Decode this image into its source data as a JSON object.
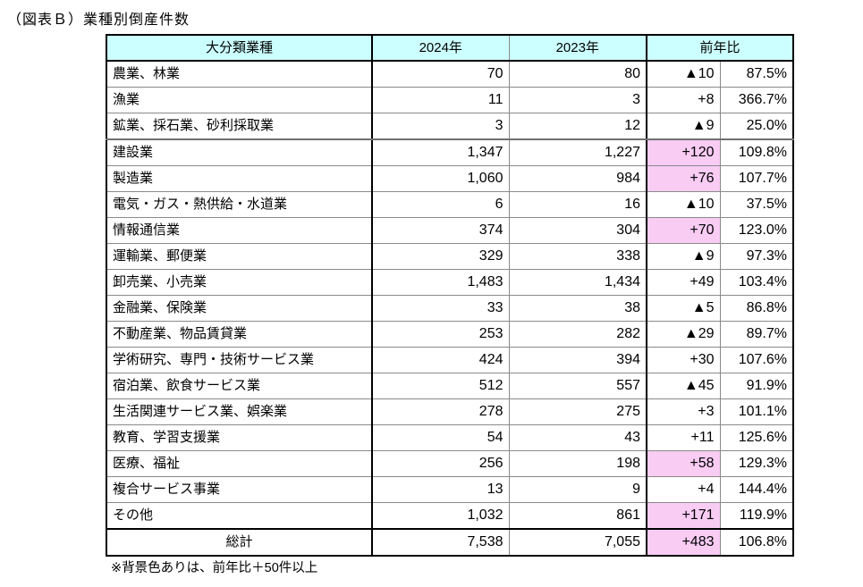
{
  "title": "（図表Ｂ）業種別倒産件数",
  "footnote": "※背景色ありは、前年比＋50件以上",
  "colors": {
    "header_bg": "#CCFFFF",
    "highlight_bg": "#F9CCF4",
    "border_dark": "#000000",
    "border_light": "#8A8A8A"
  },
  "table": {
    "headers": {
      "industry": "大分類業種",
      "y2024": "2024年",
      "y2023": "2023年",
      "yoy": "前年比"
    },
    "rows": [
      {
        "industry": "農業、林業",
        "y2024": "70",
        "y2023": "80",
        "diff": "▲10",
        "pct": "87.5%",
        "highlight": false
      },
      {
        "industry": "漁業",
        "y2024": "11",
        "y2023": "3",
        "diff": "+8",
        "pct": "366.7%",
        "highlight": false
      },
      {
        "industry": "鉱業、採石業、砂利採取業",
        "y2024": "3",
        "y2023": "12",
        "diff": "▲9",
        "pct": "25.0%",
        "highlight": false,
        "group_end": true
      },
      {
        "industry": "建設業",
        "y2024": "1,347",
        "y2023": "1,227",
        "diff": "+120",
        "pct": "109.8%",
        "highlight": true
      },
      {
        "industry": "製造業",
        "y2024": "1,060",
        "y2023": "984",
        "diff": "+76",
        "pct": "107.7%",
        "highlight": true
      },
      {
        "industry": "電気・ガス・熱供給・水道業",
        "y2024": "6",
        "y2023": "16",
        "diff": "▲10",
        "pct": "37.5%",
        "highlight": false
      },
      {
        "industry": "情報通信業",
        "y2024": "374",
        "y2023": "304",
        "diff": "+70",
        "pct": "123.0%",
        "highlight": true
      },
      {
        "industry": "運輸業、郵便業",
        "y2024": "329",
        "y2023": "338",
        "diff": "▲9",
        "pct": "97.3%",
        "highlight": false
      },
      {
        "industry": "卸売業、小売業",
        "y2024": "1,483",
        "y2023": "1,434",
        "diff": "+49",
        "pct": "103.4%",
        "highlight": false
      },
      {
        "industry": "金融業、保険業",
        "y2024": "33",
        "y2023": "38",
        "diff": "▲5",
        "pct": "86.8%",
        "highlight": false
      },
      {
        "industry": "不動産業、物品賃貸業",
        "y2024": "253",
        "y2023": "282",
        "diff": "▲29",
        "pct": "89.7%",
        "highlight": false
      },
      {
        "industry": "学術研究、専門・技術サービス業",
        "y2024": "424",
        "y2023": "394",
        "diff": "+30",
        "pct": "107.6%",
        "highlight": false
      },
      {
        "industry": "宿泊業、飲食サービス業",
        "y2024": "512",
        "y2023": "557",
        "diff": "▲45",
        "pct": "91.9%",
        "highlight": false
      },
      {
        "industry": "生活関連サービス業、娯楽業",
        "y2024": "278",
        "y2023": "275",
        "diff": "+3",
        "pct": "101.1%",
        "highlight": false
      },
      {
        "industry": "教育、学習支援業",
        "y2024": "54",
        "y2023": "43",
        "diff": "+11",
        "pct": "125.6%",
        "highlight": false
      },
      {
        "industry": "医療、福祉",
        "y2024": "256",
        "y2023": "198",
        "diff": "+58",
        "pct": "129.3%",
        "highlight": true
      },
      {
        "industry": "複合サービス事業",
        "y2024": "13",
        "y2023": "9",
        "diff": "+4",
        "pct": "144.4%",
        "highlight": false
      },
      {
        "industry": "その他",
        "y2024": "1,032",
        "y2023": "861",
        "diff": "+171",
        "pct": "119.9%",
        "highlight": true
      },
      {
        "industry": "総計",
        "y2024": "7,538",
        "y2023": "7,055",
        "diff": "+483",
        "pct": "106.8%",
        "highlight": true,
        "total": true
      }
    ]
  }
}
